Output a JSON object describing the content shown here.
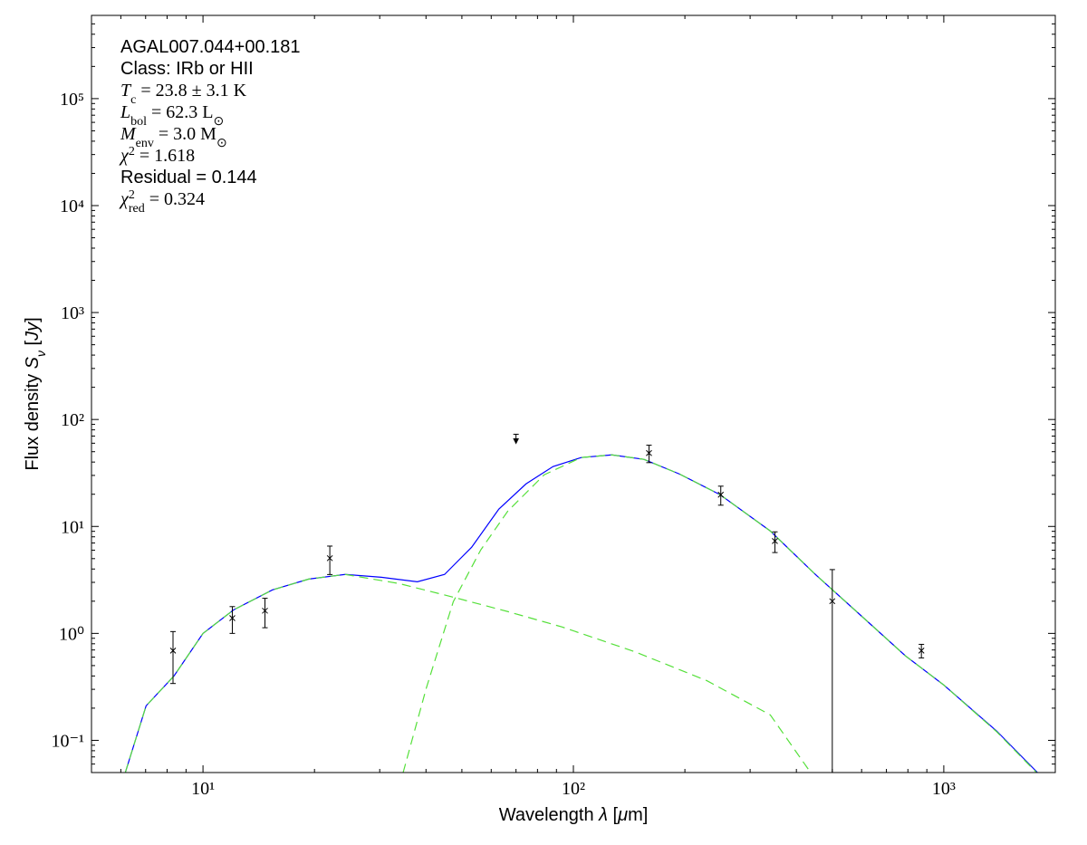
{
  "chart_data": {
    "type": "scatter",
    "xscale": "log",
    "yscale": "log",
    "xlim": [
      5,
      2000
    ],
    "ylim": [
      0.05,
      600000
    ],
    "xticks": [
      {
        "value": 10,
        "label": "10¹"
      },
      {
        "value": 100,
        "label": "10²"
      },
      {
        "value": 1000,
        "label": "10³"
      }
    ],
    "yticks": [
      {
        "value": 0.1,
        "label": "10⁻¹"
      },
      {
        "value": 1,
        "label": "10⁰"
      },
      {
        "value": 10,
        "label": "10¹"
      },
      {
        "value": 100,
        "label": "10²"
      },
      {
        "value": 1000,
        "label": "10³"
      },
      {
        "value": 10000,
        "label": "10⁴"
      },
      {
        "value": 100000,
        "label": "10⁵"
      }
    ],
    "minor_ticks": true,
    "xlabel": [
      {
        "text": "Wavelength "
      },
      {
        "text": "λ",
        "style": "italic"
      },
      {
        "text": " ["
      },
      {
        "text": "μ",
        "style": "italic"
      },
      {
        "text": "m]"
      }
    ],
    "ylabel": [
      {
        "text": "Flux density "
      },
      {
        "text": "S",
        "style": "italic"
      },
      {
        "text": "ν",
        "style": "italic-sub"
      },
      {
        "text": " ["
      },
      {
        "text": "Jy",
        "style": "italic"
      },
      {
        "text": "]"
      }
    ],
    "annotations": [
      {
        "font": "sans",
        "parts": [
          {
            "text": "AGAL007.044+00.181"
          }
        ]
      },
      {
        "font": "sans",
        "parts": [
          {
            "text": "Class: IRb or HII"
          }
        ]
      },
      {
        "font": "serif",
        "parts": [
          {
            "text": "T",
            "style": "italic"
          },
          {
            "text": "c",
            "style": "sub"
          },
          {
            "text": " = 23.8 ± 3.1 K"
          }
        ]
      },
      {
        "font": "serif",
        "parts": [
          {
            "text": "L",
            "style": "italic"
          },
          {
            "text": "bol",
            "style": "sub"
          },
          {
            "text": " = 62.3 L"
          },
          {
            "text": "⊙",
            "style": "sub"
          }
        ]
      },
      {
        "font": "serif",
        "parts": [
          {
            "text": "M",
            "style": "italic"
          },
          {
            "text": "env",
            "style": "sub"
          },
          {
            "text": " = 3.0 M"
          },
          {
            "text": "⊙",
            "style": "sub"
          }
        ]
      },
      {
        "font": "serif",
        "parts": [
          {
            "text": "χ",
            "style": "italic"
          },
          {
            "text": "2",
            "style": "sup"
          },
          {
            "text": " = 1.618"
          }
        ]
      },
      {
        "font": "sans",
        "parts": [
          {
            "text": "Residual = 0.144"
          }
        ]
      },
      {
        "font": "serif",
        "parts": [
          {
            "text": "χ",
            "style": "italic"
          },
          {
            "text": "2",
            "style": "sup"
          },
          {
            "text": "red",
            "style": "sub"
          },
          {
            "text": " = 0.324"
          }
        ]
      }
    ],
    "points": {
      "color": "#000000",
      "x": [
        8.3,
        12,
        14.7,
        22,
        160,
        250,
        350,
        500,
        870
      ],
      "values": [
        0.69,
        1.39,
        1.63,
        5.05,
        48.5,
        19.8,
        7.3,
        2.0,
        0.69
      ],
      "errors": [
        0.35,
        0.39,
        0.5,
        1.5,
        9,
        4,
        1.6,
        1.95,
        0.1
      ]
    },
    "upper_limits": {
      "color": "#000000",
      "x": [
        70
      ],
      "values": [
        70
      ]
    },
    "curves": [
      {
        "color": "#0000ff",
        "dashed": false,
        "x": [
          6.17,
          7.02,
          8.35,
          10,
          12.1,
          15.4,
          19.3,
          24.2,
          30.3,
          37.9,
          44.9,
          53.1,
          62.9,
          74.5,
          88.1,
          105,
          127,
          155,
          193,
          249,
          340,
          450,
          596,
          789,
          1000,
          1390,
          1790
        ],
        "values": [
          0.05,
          0.21,
          0.4,
          1.0,
          1.66,
          2.55,
          3.22,
          3.56,
          3.35,
          3.04,
          3.56,
          6.38,
          14.5,
          25.0,
          36.3,
          44.1,
          46.7,
          42.4,
          31.0,
          19.8,
          9.07,
          3.56,
          1.48,
          0.614,
          0.329,
          0.122,
          0.05
        ]
      },
      {
        "color": "#55e03a",
        "dashed": true,
        "x": [
          34.7,
          40.1,
          47.4,
          56.2,
          66.5,
          83.4,
          105,
          127,
          155,
          193,
          249,
          340,
          450,
          596,
          789,
          1000,
          1390,
          1790
        ],
        "values": [
          0.05,
          0.31,
          1.98,
          6.02,
          13.9,
          30.4,
          44.1,
          46.7,
          42.4,
          31.0,
          19.8,
          9.07,
          3.56,
          1.48,
          0.614,
          0.329,
          0.12,
          0.049
        ]
      },
      {
        "color": "#55e03a",
        "dashed": true,
        "x": [
          6.17,
          7.02,
          8.35,
          10,
          12.1,
          15.4,
          19.3,
          24.2,
          33.9,
          47.4,
          66.5,
          93.1,
          146,
          229,
          340,
          437
        ],
        "values": [
          0.05,
          0.21,
          0.4,
          1.0,
          1.66,
          2.55,
          3.22,
          3.56,
          2.92,
          2.18,
          1.6,
          1.15,
          0.677,
          0.362,
          0.173,
          0.05
        ]
      }
    ]
  }
}
